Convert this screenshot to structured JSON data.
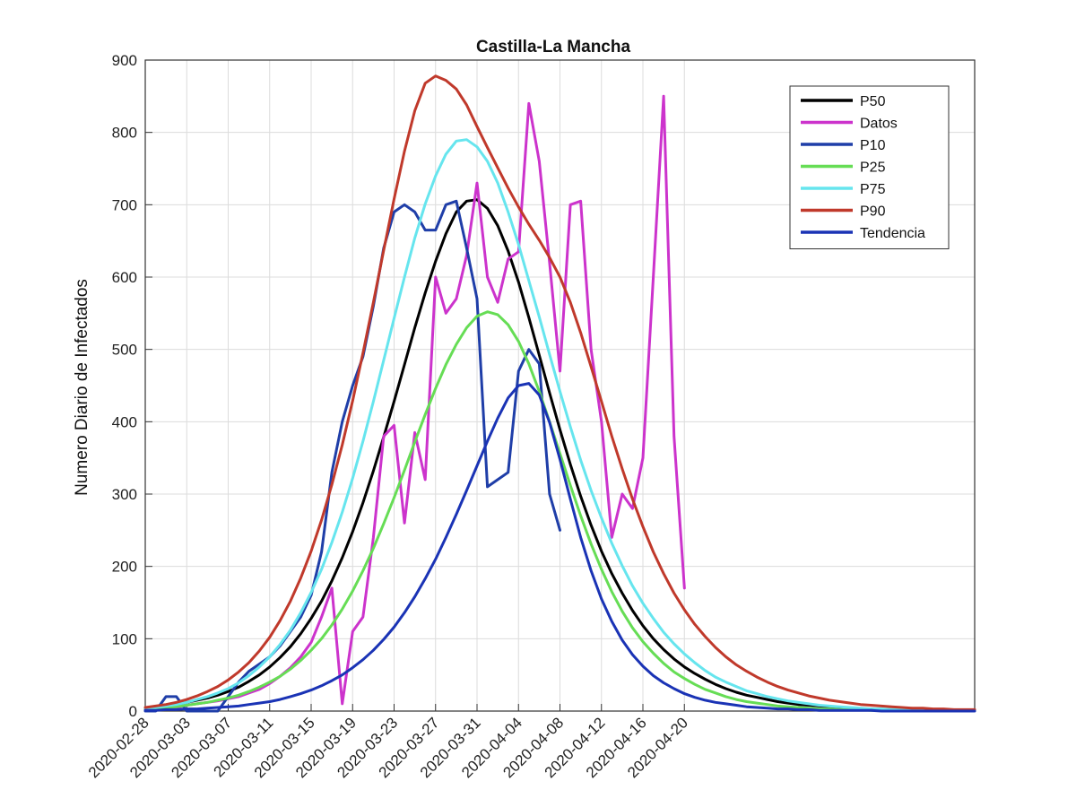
{
  "chart_data": {
    "type": "line",
    "title": "Castilla-La Mancha",
    "xlabel": "",
    "ylabel": "Numero Diario de Infectados",
    "ylim": [
      0,
      900
    ],
    "yticks": [
      0,
      100,
      200,
      300,
      400,
      500,
      600,
      700,
      800,
      900
    ],
    "x_start": "2020-02-28",
    "x_end": "2020-05-18",
    "xtick_labels": [
      "2020-02-28",
      "2020-03-03",
      "2020-03-07",
      "2020-03-11",
      "2020-03-15",
      "2020-03-19",
      "2020-03-23",
      "2020-03-27",
      "2020-03-31",
      "2020-04-04",
      "2020-04-08",
      "2020-04-12",
      "2020-04-16",
      "2020-04-20"
    ],
    "grid": true,
    "legend_position": "top-right",
    "series": [
      {
        "name": "P50",
        "color": "#000000",
        "x_start": "2020-02-28",
        "values": [
          4,
          5,
          7,
          9,
          12,
          15,
          18,
          22,
          27,
          33,
          41,
          50,
          61,
          74,
          89,
          107,
          128,
          152,
          180,
          212,
          248,
          288,
          332,
          379,
          428,
          479,
          530,
          578,
          622,
          660,
          690,
          705,
          707,
          695,
          671,
          636,
          593,
          544,
          492,
          440,
          389,
          341,
          297,
          257,
          221,
          190,
          163,
          139,
          118,
          100,
          85,
          72,
          61,
          52,
          44,
          37,
          31,
          26,
          22,
          19,
          16,
          13,
          11,
          9,
          8,
          7,
          6,
          5,
          4,
          3,
          3,
          2,
          2,
          2,
          1,
          1,
          1,
          1,
          1,
          1,
          1
        ]
      },
      {
        "name": "Datos",
        "color": "#cc33cc",
        "x_start": "2020-02-28",
        "values": [
          2,
          3,
          3,
          5,
          8,
          10,
          12,
          14,
          17,
          20,
          25,
          30,
          38,
          48,
          60,
          75,
          95,
          130,
          170,
          10,
          110,
          130,
          240,
          380,
          395,
          260,
          385,
          320,
          600,
          550,
          570,
          630,
          730,
          600,
          565,
          625,
          635,
          840,
          760,
          620,
          470,
          700,
          705,
          500,
          400,
          240,
          300,
          280,
          350,
          600,
          850,
          380,
          170
        ]
      },
      {
        "name": "P10",
        "color": "#1f3ea8",
        "x_start": "2020-02-28",
        "values": [
          0,
          0,
          20,
          20,
          0,
          0,
          0,
          0,
          20,
          40,
          55,
          65,
          75,
          90,
          110,
          130,
          160,
          220,
          330,
          400,
          450,
          490,
          560,
          640,
          690,
          700,
          690,
          665,
          665,
          700,
          705,
          640,
          570,
          310,
          320,
          330,
          470,
          500,
          480,
          300,
          250
        ]
      },
      {
        "name": "P25",
        "color": "#66dd55",
        "x_start": "2020-02-28",
        "values": [
          3,
          4,
          5,
          6,
          8,
          10,
          12,
          15,
          18,
          22,
          27,
          33,
          40,
          48,
          58,
          70,
          84,
          100,
          119,
          141,
          166,
          194,
          225,
          259,
          295,
          333,
          372,
          410,
          446,
          479,
          507,
          530,
          546,
          552,
          548,
          534,
          511,
          480,
          442,
          400,
          356,
          312,
          270,
          231,
          196,
          165,
          138,
          115,
          96,
          80,
          66,
          54,
          45,
          37,
          30,
          25,
          20,
          16,
          13,
          11,
          9,
          7,
          6,
          5,
          4,
          3,
          3,
          2,
          2,
          2,
          1,
          1,
          1,
          1,
          1,
          1,
          1,
          1,
          1,
          1,
          1
        ]
      },
      {
        "name": "P75",
        "color": "#66e5ee",
        "x_start": "2020-02-28",
        "values": [
          4,
          5,
          7,
          9,
          12,
          16,
          20,
          25,
          31,
          39,
          49,
          61,
          75,
          92,
          112,
          136,
          164,
          196,
          233,
          275,
          322,
          373,
          428,
          485,
          543,
          600,
          654,
          701,
          740,
          770,
          788,
          790,
          780,
          760,
          730,
          690,
          645,
          595,
          545,
          493,
          442,
          393,
          347,
          305,
          267,
          232,
          201,
          173,
          149,
          128,
          109,
          93,
          79,
          67,
          56,
          47,
          40,
          34,
          28,
          24,
          20,
          17,
          14,
          12,
          10,
          8,
          7,
          6,
          5,
          4,
          3,
          3,
          2,
          2,
          2,
          1,
          1,
          1,
          1,
          1,
          1
        ]
      },
      {
        "name": "P90",
        "color": "#c0392b",
        "x_start": "2020-02-28",
        "values": [
          5,
          7,
          9,
          12,
          16,
          21,
          27,
          34,
          43,
          54,
          67,
          83,
          102,
          125,
          152,
          184,
          221,
          264,
          313,
          368,
          429,
          495,
          565,
          637,
          708,
          774,
          830,
          868,
          878,
          872,
          860,
          838,
          808,
          779,
          751,
          723,
          697,
          673,
          651,
          627,
          600,
          565,
          523,
          476,
          428,
          380,
          335,
          293,
          255,
          220,
          190,
          163,
          140,
          120,
          103,
          88,
          75,
          64,
          55,
          47,
          40,
          34,
          29,
          25,
          21,
          18,
          15,
          13,
          11,
          9,
          8,
          7,
          6,
          5,
          4,
          4,
          3,
          3,
          2,
          2,
          2
        ]
      },
      {
        "name": "Tendencia",
        "color": "#1a33b5",
        "x_start": "2020-02-28",
        "values": [
          1,
          1,
          2,
          2,
          3,
          3,
          4,
          5,
          6,
          7,
          9,
          11,
          13,
          16,
          20,
          24,
          29,
          35,
          42,
          50,
          60,
          71,
          84,
          99,
          116,
          136,
          158,
          183,
          210,
          240,
          272,
          305,
          339,
          373,
          405,
          433,
          450,
          453,
          437,
          399,
          348,
          293,
          240,
          194,
          155,
          124,
          98,
          78,
          62,
          49,
          39,
          31,
          24,
          19,
          15,
          12,
          10,
          8,
          6,
          5,
          4,
          3,
          3,
          2,
          2,
          1,
          1,
          1,
          1,
          1,
          1,
          0,
          0,
          0,
          0,
          0,
          0,
          0,
          0,
          0,
          0
        ]
      }
    ]
  }
}
